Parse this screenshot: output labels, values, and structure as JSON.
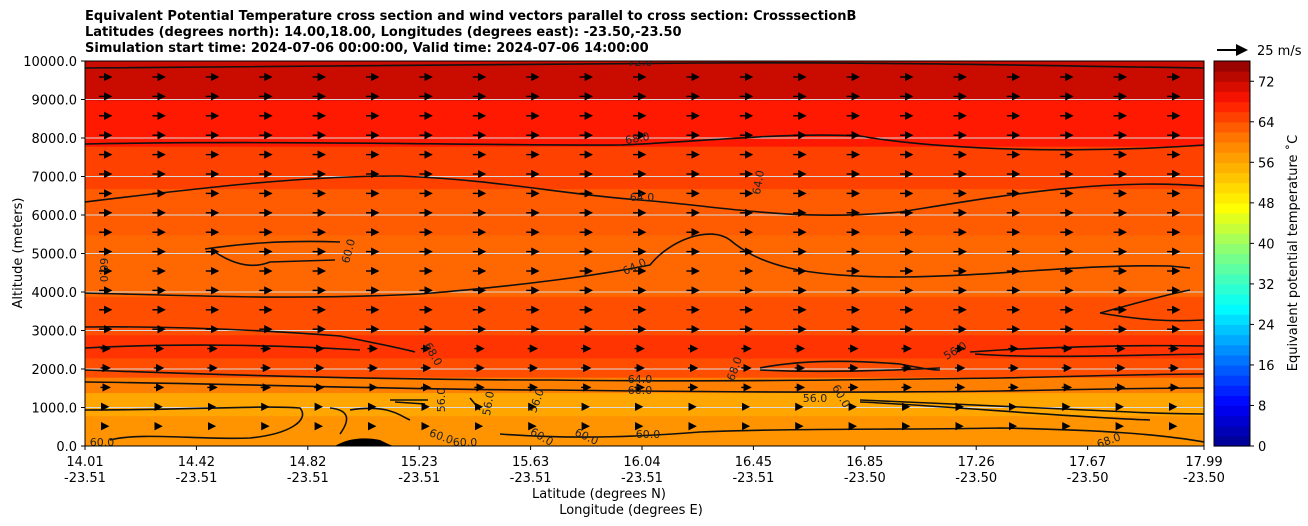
{
  "chart_data": {
    "type": "heatmap",
    "title_lines": [
      "Equivalent Potential Temperature cross section and wind vectors parallel to cross section: CrosssectionB",
      "Latitudes (degrees north): 14.00,18.00, Longitudes (degrees east): -23.50,-23.50",
      "Simulation start time: 2024-07-06 00:00:00, Valid time: 2024-07-06 14:00:00"
    ],
    "ylabel": "Altitude (meters)",
    "xlabel": "Latitude (degrees N)",
    "xlabel2": "Longitude (degrees E)",
    "ylim": [
      0,
      10000
    ],
    "yticks": [
      "0.0",
      "1000.0",
      "2000.0",
      "3000.0",
      "4000.0",
      "5000.0",
      "6000.0",
      "7000.0",
      "8000.0",
      "9000.0",
      "10000.0"
    ],
    "xticks": [
      {
        "lat": "14.01",
        "lon": "-23.51"
      },
      {
        "lat": "14.42",
        "lon": "-23.51"
      },
      {
        "lat": "14.82",
        "lon": "-23.51"
      },
      {
        "lat": "15.23",
        "lon": "-23.51"
      },
      {
        "lat": "15.63",
        "lon": "-23.51"
      },
      {
        "lat": "16.04",
        "lon": "-23.51"
      },
      {
        "lat": "16.45",
        "lon": "-23.51"
      },
      {
        "lat": "16.85",
        "lon": "-23.50"
      },
      {
        "lat": "17.26",
        "lon": "-23.50"
      },
      {
        "lat": "17.67",
        "lon": "-23.50"
      },
      {
        "lat": "17.99",
        "lon": "-23.50"
      }
    ],
    "colorbar": {
      "label": "Equivalent potential temperature $^\\circ$C",
      "label_display": "Equivalent potential temperature ˚C",
      "range": [
        0,
        76
      ],
      "ticks": [
        "0",
        "8",
        "16",
        "24",
        "32",
        "40",
        "48",
        "56",
        "64",
        "72"
      ]
    },
    "quiver_key": "25 m/s",
    "layers": [
      {
        "alt_top": 800,
        "theta": 58
      },
      {
        "alt_top": 1400,
        "theta": 56
      },
      {
        "alt_top": 1800,
        "theta": 60
      },
      {
        "alt_top": 2300,
        "theta": 64
      },
      {
        "alt_top": 2900,
        "theta": 66
      },
      {
        "alt_top": 3900,
        "theta": 64
      },
      {
        "alt_top": 5500,
        "theta": 62
      },
      {
        "alt_top": 6700,
        "theta": 63
      },
      {
        "alt_top": 7800,
        "theta": 65
      },
      {
        "alt_top": 9000,
        "theta": 68
      },
      {
        "alt_top": 10000,
        "theta": 72
      }
    ],
    "contour_labels": [
      "72.0",
      "68.0",
      "64.0",
      "64.0",
      "60.0",
      "64.0",
      "60.0",
      "68.0",
      "64.0",
      "60.0",
      "56.0",
      "56.0",
      "56.0",
      "60.0",
      "60.0",
      "60.0",
      "60.0",
      "60.0",
      "60.0",
      "68.0",
      "68.0",
      "56.0",
      "56.0",
      "60.0"
    ]
  }
}
